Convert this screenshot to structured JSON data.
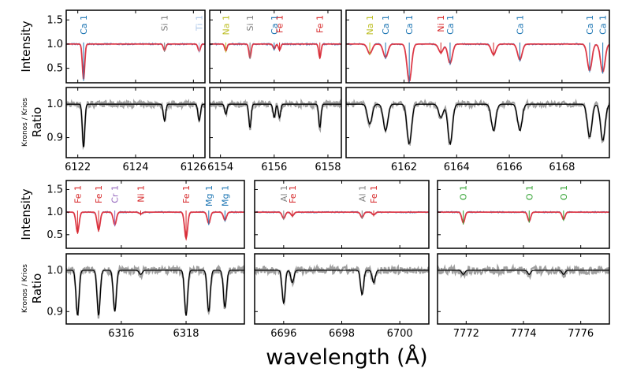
{
  "chart_data": {
    "type": "line",
    "title": "",
    "xlabel": "wavelength (Å)",
    "row_ylabels": {
      "top": "Intensity",
      "bottom": "Ratio",
      "bottom_small": "Kronos / Krios"
    },
    "series_colors": {
      "model": "#e8303a",
      "observed": "#4a7cc4",
      "ratio_obs": "#a0a0a0",
      "ratio_model": "#000000"
    },
    "panels": [
      {
        "id": "p1",
        "xlim": [
          6121.6,
          6126.4
        ],
        "xticks": [
          6122,
          6124,
          6126
        ],
        "intensity_ylim": [
          0.2,
          1.7
        ],
        "intensity_yticks": [
          0.5,
          1.0,
          1.5
        ],
        "ratio_ylim": [
          0.84,
          1.05
        ],
        "ratio_yticks": [
          0.9,
          1.0
        ],
        "lines": [
          {
            "label": "Ca 1",
            "wl": 6122.2,
            "color": "#1f77b4",
            "int": 0.27,
            "ratio": 0.87
          },
          {
            "label": "Si 1",
            "wl": 6125.0,
            "color": "#7f7f7f",
            "int": 0.87,
            "ratio": 0.95
          },
          {
            "label": "Ti 1",
            "wl": 6126.2,
            "color": "#aec7e8",
            "int": 0.85,
            "ratio": 0.95
          }
        ]
      },
      {
        "id": "p2",
        "xlim": [
          6153.6,
          6158.5
        ],
        "xticks": [
          6154,
          6156,
          6158
        ],
        "intensity_ylim": [
          0.2,
          1.7
        ],
        "intensity_yticks": [
          0.5,
          1.0,
          1.5
        ],
        "ratio_ylim": [
          0.84,
          1.05
        ],
        "ratio_yticks": [
          0.9,
          1.0
        ],
        "lines": [
          {
            "label": "Na 1",
            "wl": 6154.2,
            "color": "#bcbd22",
            "int": 0.86,
            "ratio": 0.97
          },
          {
            "label": "Si 1",
            "wl": 6155.1,
            "color": "#7f7f7f",
            "int": 0.72,
            "ratio": 0.93
          },
          {
            "label": "Ca 1",
            "wl": 6156.0,
            "color": "#1f77b4",
            "int": 0.9,
            "ratio": 0.96
          },
          {
            "label": "Fe 1",
            "wl": 6156.2,
            "color": "#d62728",
            "int": 0.88,
            "ratio": 0.96
          },
          {
            "label": "Fe 1",
            "wl": 6157.7,
            "color": "#d62728",
            "int": 0.72,
            "ratio": 0.93
          }
        ]
      },
      {
        "id": "p3",
        "xlim": [
          6159.8,
          6169.8
        ],
        "xticks": [
          6162,
          6164,
          6166,
          6168
        ],
        "intensity_ylim": [
          0.2,
          1.7
        ],
        "intensity_yticks": [
          0.5,
          1.0,
          1.5
        ],
        "ratio_ylim": [
          0.84,
          1.05
        ],
        "ratio_yticks": [
          0.9,
          1.0
        ],
        "lines": [
          {
            "label": "Na 1",
            "wl": 6160.7,
            "color": "#bcbd22",
            "int": 0.8,
            "ratio": 0.94
          },
          {
            "label": "Ca 1",
            "wl": 6161.3,
            "color": "#1f77b4",
            "int": 0.72,
            "ratio": 0.92
          },
          {
            "label": "Ca 1",
            "wl": 6162.2,
            "color": "#1f77b4",
            "int": 0.22,
            "ratio": 0.88
          },
          {
            "label": "Ni 1",
            "wl": 6163.4,
            "color": "#d62728",
            "int": 0.82,
            "ratio": 0.96
          },
          {
            "label": "Ca 1",
            "wl": 6163.75,
            "color": "#1f77b4",
            "int": 0.6,
            "ratio": 0.88
          },
          {
            "label": "",
            "wl": 6165.4,
            "color": "#d62728",
            "int": 0.78,
            "ratio": 0.92
          },
          {
            "label": "Ca 1",
            "wl": 6166.4,
            "color": "#1f77b4",
            "int": 0.67,
            "ratio": 0.92
          },
          {
            "label": "Ca 1",
            "wl": 6169.05,
            "color": "#1f77b4",
            "int": 0.45,
            "ratio": 0.9
          },
          {
            "label": "Ca 1",
            "wl": 6169.55,
            "color": "#1f77b4",
            "int": 0.42,
            "ratio": 0.89
          }
        ]
      },
      {
        "id": "p4",
        "xlim": [
          6314.3,
          6319.8
        ],
        "xticks": [
          6316,
          6318
        ],
        "intensity_ylim": [
          0.2,
          1.7
        ],
        "intensity_yticks": [
          0.5,
          1.0,
          1.5
        ],
        "ratio_ylim": [
          0.87,
          1.04
        ],
        "ratio_yticks": [
          0.9,
          1.0
        ],
        "lines": [
          {
            "label": "Fe 1",
            "wl": 6314.65,
            "color": "#d62728",
            "int": 0.55,
            "ratio": 0.89
          },
          {
            "label": "Fe 1",
            "wl": 6315.3,
            "color": "#d62728",
            "int": 0.6,
            "ratio": 0.89
          },
          {
            "label": "Cr 1",
            "wl": 6315.8,
            "color": "#9467bd",
            "int": 0.72,
            "ratio": 0.9
          },
          {
            "label": "Ni 1",
            "wl": 6316.6,
            "color": "#d62728",
            "int": 0.96,
            "ratio": 0.99
          },
          {
            "label": "Fe 1",
            "wl": 6318.0,
            "color": "#d62728",
            "int": 0.42,
            "ratio": 0.89
          },
          {
            "label": "Mg 1",
            "wl": 6318.7,
            "color": "#1f77b4",
            "int": 0.75,
            "ratio": 0.9
          },
          {
            "label": "Mg 1",
            "wl": 6319.2,
            "color": "#1f77b4",
            "int": 0.82,
            "ratio": 0.91
          }
        ]
      },
      {
        "id": "p5",
        "xlim": [
          6695.0,
          6701.0
        ],
        "xticks": [
          6696,
          6698,
          6700
        ],
        "intensity_ylim": [
          0.2,
          1.7
        ],
        "intensity_yticks": [
          0.5,
          1.0,
          1.5
        ],
        "ratio_ylim": [
          0.87,
          1.04
        ],
        "ratio_yticks": [
          0.9,
          1.0
        ],
        "lines": [
          {
            "label": "Al 1",
            "wl": 6696.0,
            "color": "#7f7f7f",
            "int": 0.86,
            "ratio": 0.92
          },
          {
            "label": "Fe 1",
            "wl": 6696.3,
            "color": "#d62728",
            "int": 0.92,
            "ratio": 0.97
          },
          {
            "label": "Al 1",
            "wl": 6698.7,
            "color": "#7f7f7f",
            "int": 0.88,
            "ratio": 0.94
          },
          {
            "label": "Fe 1",
            "wl": 6699.1,
            "color": "#d62728",
            "int": 0.94,
            "ratio": 0.97
          }
        ]
      },
      {
        "id": "p6",
        "xlim": [
          7771.0,
          7777.0
        ],
        "xticks": [
          7772,
          7774,
          7776
        ],
        "intensity_ylim": [
          0.2,
          1.7
        ],
        "intensity_yticks": [
          0.5,
          1.0,
          1.5
        ],
        "ratio_ylim": [
          0.87,
          1.04
        ],
        "ratio_yticks": [
          0.9,
          1.0
        ],
        "lines": [
          {
            "label": "O 1",
            "wl": 7771.9,
            "color": "#2ca02c",
            "int": 0.76,
            "ratio": 0.99
          },
          {
            "label": "O 1",
            "wl": 7774.2,
            "color": "#2ca02c",
            "int": 0.8,
            "ratio": 0.99
          },
          {
            "label": "O 1",
            "wl": 7775.4,
            "color": "#2ca02c",
            "int": 0.84,
            "ratio": 0.99
          }
        ]
      }
    ]
  }
}
